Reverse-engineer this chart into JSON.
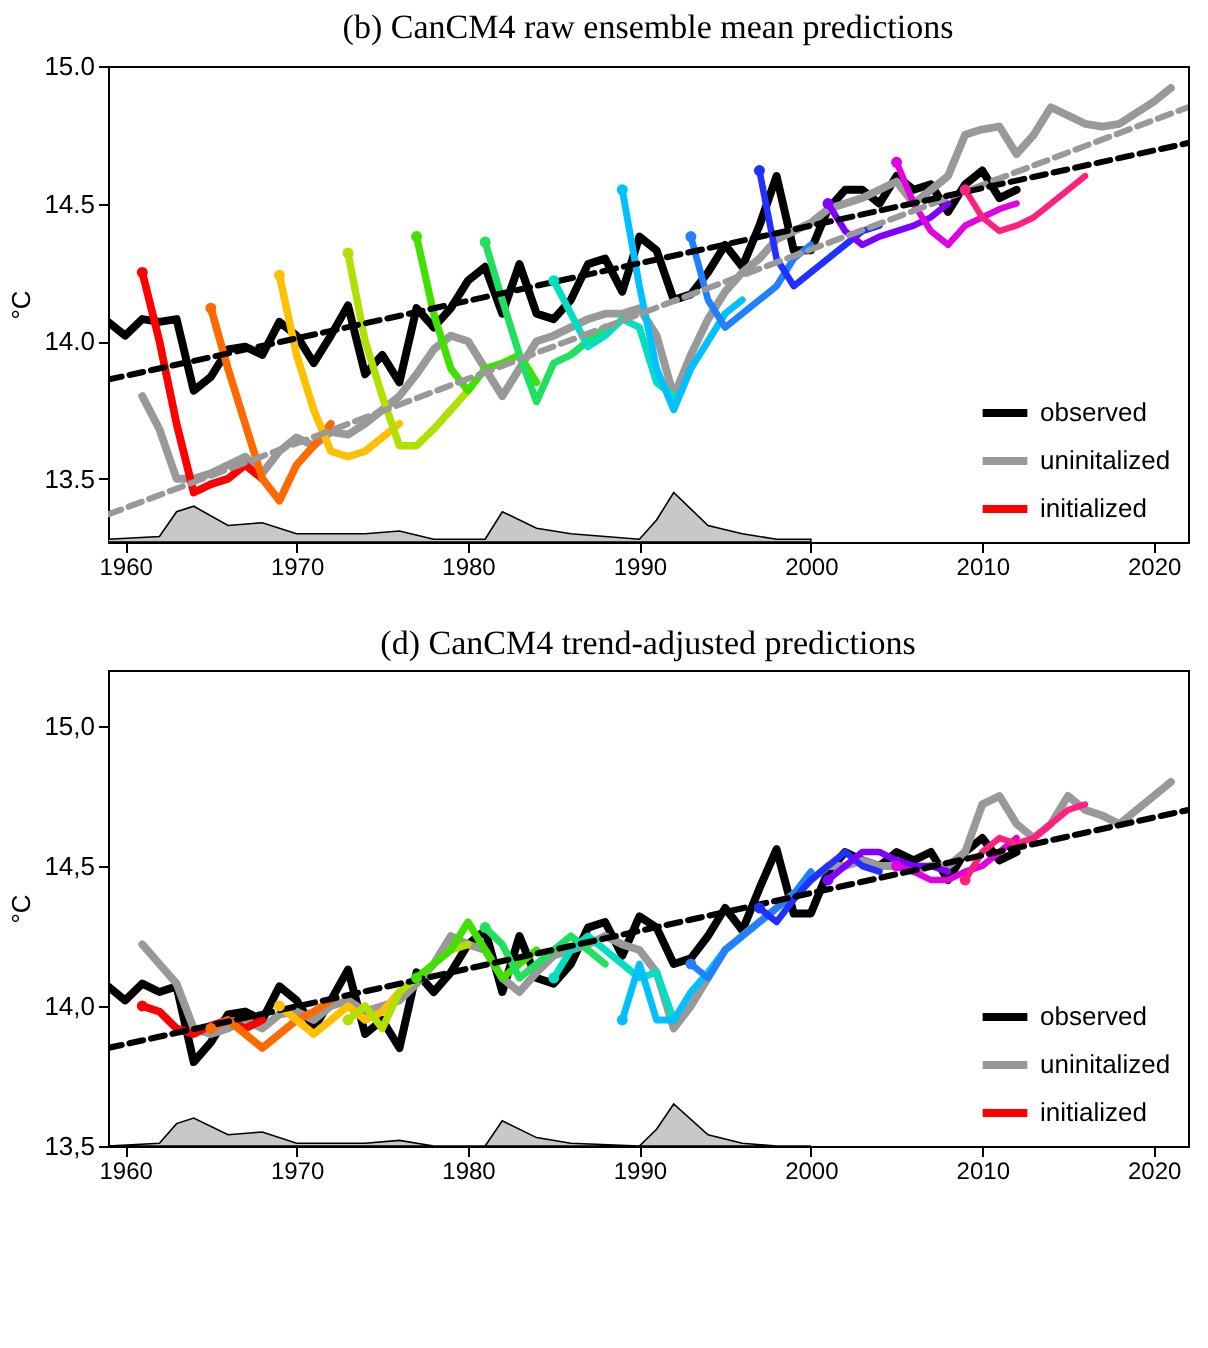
{
  "chart_data": [
    {
      "type": "line",
      "title": "(b)    CanCM4 raw ensemble mean predictions",
      "ylabel": "°C",
      "xlim": [
        1959,
        2022
      ],
      "xticks": [
        1960,
        1970,
        1980,
        1990,
        2000,
        2010,
        2020
      ],
      "ylim": [
        13.27,
        15.0
      ],
      "yticks": [
        {
          "value": 13.5,
          "label": "13.5"
        },
        {
          "value": 14,
          "label": "14.0"
        },
        {
          "value": 14.5,
          "label": "14.5"
        },
        {
          "value": 15,
          "label": "15.0"
        }
      ],
      "legend": "bottom right",
      "series": [
        {
          "type": "area",
          "color": "#c8c8c8",
          "x": [
            1959,
            1962,
            1963,
            1964,
            1966,
            1968,
            1970,
            1974,
            1976,
            1978,
            1981,
            1982,
            1984,
            1986,
            1990,
            1991,
            1992,
            1994,
            1996,
            1998,
            2000
          ],
          "values": [
            13.28,
            13.29,
            13.38,
            13.4,
            13.33,
            13.34,
            13.3,
            13.3,
            13.31,
            13.28,
            13.28,
            13.38,
            13.32,
            13.3,
            13.28,
            13.35,
            13.45,
            13.33,
            13.3,
            13.28,
            13.28
          ]
        },
        {
          "name": "observed",
          "color": "#000000",
          "x": [
            1959,
            1960,
            1961,
            1962,
            1963,
            1964,
            1965,
            1966,
            1967,
            1968,
            1969,
            1970,
            1971,
            1972,
            1973,
            1974,
            1975,
            1976,
            1977,
            1978,
            1979,
            1980,
            1981,
            1982,
            1983,
            1984,
            1985,
            1986,
            1987,
            1988,
            1989,
            1990,
            1991,
            1992,
            1993,
            1994,
            1995,
            1996,
            1997,
            1998,
            1999,
            2000,
            2001,
            2002,
            2003,
            2004,
            2005,
            2006,
            2007,
            2008,
            2009,
            2010,
            2011,
            2012
          ],
          "values": [
            14.07,
            14.02,
            14.08,
            14.07,
            14.08,
            13.82,
            13.87,
            13.97,
            13.98,
            13.95,
            14.07,
            14.02,
            13.92,
            14.02,
            14.13,
            13.88,
            13.95,
            13.85,
            14.12,
            14.05,
            14.12,
            14.22,
            14.27,
            14.1,
            14.28,
            14.1,
            14.08,
            14.15,
            14.28,
            14.3,
            14.18,
            14.38,
            14.33,
            14.15,
            14.17,
            14.25,
            14.35,
            14.27,
            14.42,
            14.6,
            14.33,
            14.33,
            14.48,
            14.55,
            14.55,
            14.5,
            14.6,
            14.55,
            14.57,
            14.47,
            14.57,
            14.62,
            14.52,
            14.55
          ]
        },
        {
          "name": "uninitalized",
          "color": "#999999",
          "x": [
            1961,
            1962,
            1963,
            1964,
            1965,
            1966,
            1967,
            1968,
            1969,
            1970,
            1971,
            1972,
            1973,
            1974,
            1975,
            1976,
            1977,
            1978,
            1979,
            1980,
            1981,
            1982,
            1983,
            1984,
            1985,
            1986,
            1987,
            1988,
            1989,
            1990,
            1991,
            1992,
            1993,
            1994,
            1995,
            1996,
            1997,
            1998,
            1999,
            2000,
            2001,
            2002,
            2003,
            2004,
            2005,
            2006,
            2007,
            2008,
            2009,
            2010,
            2011,
            2012,
            2013,
            2014,
            2015,
            2016,
            2017,
            2018,
            2019,
            2020,
            2021
          ],
          "values": [
            13.8,
            13.68,
            13.5,
            13.5,
            13.52,
            13.55,
            13.58,
            13.52,
            13.6,
            13.65,
            13.62,
            13.67,
            13.66,
            13.7,
            13.75,
            13.8,
            13.88,
            13.97,
            14.02,
            14.0,
            13.9,
            13.8,
            13.9,
            14.0,
            14.02,
            14.05,
            14.08,
            14.1,
            14.1,
            14.12,
            14.02,
            13.8,
            13.95,
            14.08,
            14.18,
            14.25,
            14.3,
            14.37,
            14.4,
            14.43,
            14.48,
            14.5,
            14.52,
            14.55,
            14.58,
            14.5,
            14.55,
            14.6,
            14.75,
            14.77,
            14.78,
            14.68,
            14.75,
            14.85,
            14.82,
            14.79,
            14.78,
            14.79,
            14.83,
            14.87,
            14.92
          ]
        },
        {
          "name": "initialized",
          "color": "#ff0000",
          "x": [
            1961,
            1962,
            1963,
            1964,
            1965,
            1966,
            1967,
            1968
          ],
          "values": [
            14.25,
            14.0,
            13.7,
            13.45,
            13.48,
            13.5,
            13.55,
            13.5
          ]
        },
        {
          "color": "#ff6a00",
          "x": [
            1965,
            1966,
            1967,
            1968,
            1969,
            1970,
            1971,
            1972
          ],
          "values": [
            14.12,
            13.9,
            13.7,
            13.5,
            13.42,
            13.55,
            13.62,
            13.7
          ]
        },
        {
          "color": "#ffc000",
          "x": [
            1969,
            1970,
            1971,
            1972,
            1973,
            1974,
            1975,
            1976
          ],
          "values": [
            14.24,
            13.95,
            13.75,
            13.6,
            13.58,
            13.6,
            13.65,
            13.7
          ]
        },
        {
          "color": "#b0e000",
          "x": [
            1973,
            1974,
            1975,
            1976,
            1977,
            1978,
            1979,
            1980
          ],
          "values": [
            14.32,
            14.0,
            13.8,
            13.62,
            13.62,
            13.68,
            13.75,
            13.82
          ]
        },
        {
          "color": "#40e000",
          "x": [
            1977,
            1978,
            1979,
            1980,
            1981,
            1982,
            1983,
            1984
          ],
          "values": [
            14.38,
            14.1,
            13.9,
            13.82,
            13.9,
            13.92,
            13.95,
            13.85
          ]
        },
        {
          "color": "#20e060",
          "x": [
            1981,
            1982,
            1983,
            1984,
            1985,
            1986,
            1987,
            1988
          ],
          "values": [
            14.36,
            14.15,
            13.95,
            13.78,
            13.92,
            13.95,
            14.0,
            14.05
          ]
        },
        {
          "color": "#00e0c0",
          "x": [
            1985,
            1986,
            1987,
            1988,
            1989,
            1990,
            1991,
            1992
          ],
          "values": [
            14.22,
            14.1,
            13.98,
            14.02,
            14.08,
            14.05,
            13.85,
            13.8
          ]
        },
        {
          "color": "#00c0ff",
          "x": [
            1989,
            1990,
            1991,
            1992,
            1993,
            1994,
            1995,
            1996
          ],
          "values": [
            14.55,
            14.2,
            13.9,
            13.75,
            13.9,
            14.0,
            14.1,
            14.15
          ]
        },
        {
          "color": "#2080ff",
          "x": [
            1993,
            1994,
            1995,
            1996,
            1997,
            1998,
            1999,
            2000
          ],
          "values": [
            14.38,
            14.15,
            14.05,
            14.1,
            14.15,
            14.2,
            14.3,
            14.35
          ]
        },
        {
          "color": "#2030ff",
          "x": [
            1997,
            1998,
            1999,
            2000,
            2001,
            2002,
            2003,
            2004
          ],
          "values": [
            14.62,
            14.3,
            14.2,
            14.25,
            14.3,
            14.35,
            14.4,
            14.42
          ]
        },
        {
          "color": "#8000ff",
          "x": [
            2001,
            2002,
            2003,
            2004,
            2005,
            2006,
            2007,
            2008
          ],
          "values": [
            14.5,
            14.4,
            14.35,
            14.38,
            14.4,
            14.42,
            14.45,
            14.5
          ]
        },
        {
          "color": "#e000e0",
          "x": [
            2005,
            2006,
            2007,
            2008,
            2009,
            2010,
            2011,
            2012
          ],
          "values": [
            14.65,
            14.5,
            14.4,
            14.35,
            14.42,
            14.45,
            14.48,
            14.5
          ]
        },
        {
          "color": "#ff2080",
          "x": [
            2009,
            2010,
            2011,
            2012,
            2013,
            2014,
            2015,
            2016
          ],
          "values": [
            14.55,
            14.45,
            14.4,
            14.42,
            14.45,
            14.5,
            14.55,
            14.6
          ]
        },
        {
          "type": "scatter",
          "colors": [
            "#ff0000",
            "#ff6a00",
            "#ffc000",
            "#b0e000",
            "#40e000",
            "#20e060",
            "#00e0c0",
            "#00c0ff",
            "#2080ff",
            "#2030ff",
            "#8000ff",
            "#e000e0",
            "#ff2080"
          ],
          "x": [
            1961,
            1965,
            1969,
            1973,
            1977,
            1981,
            1985,
            1989,
            1993,
            1997,
            2001,
            2005,
            2009
          ],
          "values": [
            14.25,
            14.12,
            14.24,
            14.32,
            14.38,
            14.36,
            14.22,
            14.55,
            14.38,
            14.62,
            14.5,
            14.65,
            14.55
          ]
        },
        {
          "color": "#999999",
          "line_style": "dashed",
          "x": [
            1959,
            2022
          ],
          "values": [
            13.37,
            14.85
          ]
        },
        {
          "color": "#000000",
          "line_style": "dashed",
          "x": [
            1959,
            2022
          ],
          "values": [
            13.86,
            14.72
          ]
        }
      ]
    },
    {
      "type": "line",
      "title": "(d)    CanCM4 trend-adjusted predictions",
      "ylabel": "°C",
      "xlim": [
        1959,
        2022
      ],
      "xticks": [
        1960,
        1970,
        1980,
        1990,
        2000,
        2010,
        2020
      ],
      "ylim": [
        13.5,
        15.2
      ],
      "yticks": [
        {
          "value": 13.5,
          "label": "13,5"
        },
        {
          "value": 14,
          "label": "14,0"
        },
        {
          "value": 14.5,
          "label": "14,5"
        },
        {
          "value": 15,
          "label": "15,0"
        }
      ],
      "legend": "bottom right",
      "series": [
        {
          "type": "area",
          "color": "#c8c8c8",
          "x": [
            1959,
            1962,
            1963,
            1964,
            1966,
            1968,
            1970,
            1974,
            1976,
            1978,
            1981,
            1982,
            1984,
            1986,
            1990,
            1991,
            1992,
            1994,
            1996,
            1998,
            2000
          ],
          "values": [
            13.5,
            13.51,
            13.58,
            13.6,
            13.54,
            13.55,
            13.51,
            13.51,
            13.52,
            13.5,
            13.5,
            13.59,
            13.53,
            13.51,
            13.5,
            13.56,
            13.65,
            13.54,
            13.51,
            13.5,
            13.5
          ]
        },
        {
          "name": "observed",
          "color": "#000000",
          "x": [
            1959,
            1960,
            1961,
            1962,
            1963,
            1964,
            1965,
            1966,
            1967,
            1968,
            1969,
            1970,
            1971,
            1972,
            1973,
            1974,
            1975,
            1976,
            1977,
            1978,
            1979,
            1980,
            1981,
            1982,
            1983,
            1984,
            1985,
            1986,
            1987,
            1988,
            1989,
            1990,
            1991,
            1992,
            1993,
            1994,
            1995,
            1996,
            1997,
            1998,
            1999,
            2000,
            2001,
            2002,
            2003,
            2004,
            2005,
            2006,
            2007,
            2008,
            2009,
            2010,
            2011,
            2012
          ],
          "values": [
            14.07,
            14.02,
            14.08,
            14.05,
            14.07,
            13.8,
            13.87,
            13.97,
            13.98,
            13.95,
            14.07,
            14.02,
            13.92,
            14.02,
            14.13,
            13.9,
            13.95,
            13.85,
            14.12,
            14.05,
            14.12,
            14.22,
            14.27,
            14.05,
            14.25,
            14.1,
            14.08,
            14.15,
            14.28,
            14.3,
            14.18,
            14.32,
            14.28,
            14.15,
            14.17,
            14.25,
            14.35,
            14.27,
            14.42,
            14.56,
            14.33,
            14.33,
            14.48,
            14.55,
            14.52,
            14.5,
            14.55,
            14.52,
            14.55,
            14.45,
            14.55,
            14.6,
            14.52,
            14.55
          ]
        },
        {
          "name": "uninitalized",
          "color": "#999999",
          "x": [
            1961,
            1962,
            1963,
            1964,
            1965,
            1966,
            1967,
            1968,
            1969,
            1970,
            1971,
            1972,
            1973,
            1974,
            1975,
            1976,
            1977,
            1978,
            1979,
            1980,
            1981,
            1982,
            1983,
            1984,
            1985,
            1986,
            1987,
            1988,
            1989,
            1990,
            1991,
            1992,
            1993,
            1994,
            1995,
            1996,
            1997,
            1998,
            1999,
            2000,
            2001,
            2002,
            2003,
            2004,
            2005,
            2006,
            2007,
            2008,
            2009,
            2010,
            2011,
            2012,
            2013,
            2014,
            2015,
            2016,
            2017,
            2018,
            2019,
            2020,
            2021
          ],
          "values": [
            14.22,
            14.15,
            14.08,
            13.92,
            13.9,
            13.92,
            13.95,
            13.92,
            13.97,
            13.98,
            13.95,
            14.0,
            14.02,
            13.98,
            14.0,
            14.02,
            14.08,
            14.15,
            14.25,
            14.22,
            14.2,
            14.1,
            14.05,
            14.12,
            14.18,
            14.2,
            14.22,
            14.25,
            14.22,
            14.2,
            14.12,
            13.92,
            14.0,
            14.1,
            14.2,
            14.25,
            14.3,
            14.35,
            14.4,
            14.45,
            14.5,
            14.5,
            14.52,
            14.5,
            14.5,
            14.48,
            14.5,
            14.5,
            14.55,
            14.72,
            14.75,
            14.65,
            14.6,
            14.65,
            14.75,
            14.7,
            14.68,
            14.65,
            14.7,
            14.75,
            14.8
          ]
        },
        {
          "name": "initialized",
          "color": "#ff0000",
          "x": [
            1961,
            1962,
            1963,
            1964,
            1965,
            1966,
            1967,
            1968
          ],
          "values": [
            14.0,
            13.98,
            13.92,
            13.9,
            13.93,
            13.95,
            13.92,
            13.95
          ]
        },
        {
          "color": "#ff6a00",
          "x": [
            1965,
            1966,
            1967,
            1968,
            1969,
            1970,
            1971,
            1972
          ],
          "values": [
            13.92,
            13.95,
            13.9,
            13.85,
            13.9,
            13.95,
            13.98,
            14.02
          ]
        },
        {
          "color": "#ffc000",
          "x": [
            1969,
            1970,
            1971,
            1972,
            1973,
            1974,
            1975,
            1976
          ],
          "values": [
            14.0,
            13.95,
            13.9,
            13.95,
            14.0,
            13.95,
            13.98,
            14.05
          ]
        },
        {
          "color": "#b0e000",
          "x": [
            1973,
            1974,
            1975,
            1976,
            1977,
            1978,
            1979,
            1980
          ],
          "values": [
            13.95,
            14.0,
            13.92,
            14.05,
            14.1,
            14.15,
            14.2,
            14.22
          ]
        },
        {
          "color": "#40e000",
          "x": [
            1977,
            1978,
            1979,
            1980,
            1981,
            1982,
            1983,
            1984
          ],
          "values": [
            14.1,
            14.15,
            14.2,
            14.3,
            14.2,
            14.1,
            14.15,
            14.2
          ]
        },
        {
          "color": "#20e060",
          "x": [
            1981,
            1982,
            1983,
            1984,
            1985,
            1986,
            1987,
            1988
          ],
          "values": [
            14.28,
            14.22,
            14.1,
            14.15,
            14.2,
            14.25,
            14.2,
            14.15
          ]
        },
        {
          "color": "#00e0c0",
          "x": [
            1985,
            1986,
            1987,
            1988,
            1989,
            1990,
            1991,
            1992
          ],
          "values": [
            14.1,
            14.2,
            14.25,
            14.2,
            14.15,
            14.1,
            14.12,
            13.95
          ]
        },
        {
          "color": "#00c0ff",
          "x": [
            1989,
            1990,
            1991,
            1992,
            1993,
            1994,
            1995,
            1996
          ],
          "values": [
            13.95,
            14.15,
            13.95,
            13.95,
            14.05,
            14.12,
            14.2,
            14.25
          ]
        },
        {
          "color": "#2080ff",
          "x": [
            1993,
            1994,
            1995,
            1996,
            1997,
            1998,
            1999,
            2000
          ],
          "values": [
            14.15,
            14.1,
            14.2,
            14.25,
            14.3,
            14.35,
            14.4,
            14.48
          ]
        },
        {
          "color": "#2030ff",
          "x": [
            1997,
            1998,
            1999,
            2000,
            2001,
            2002,
            2003,
            2004
          ],
          "values": [
            14.35,
            14.3,
            14.38,
            14.45,
            14.5,
            14.55,
            14.5,
            14.48
          ]
        },
        {
          "color": "#8000ff",
          "x": [
            2001,
            2002,
            2003,
            2004,
            2005,
            2006,
            2007,
            2008
          ],
          "values": [
            14.45,
            14.5,
            14.55,
            14.55,
            14.52,
            14.5,
            14.5,
            14.48
          ]
        },
        {
          "color": "#e000e0",
          "x": [
            2005,
            2006,
            2007,
            2008,
            2009,
            2010,
            2011,
            2012
          ],
          "values": [
            14.5,
            14.48,
            14.45,
            14.45,
            14.48,
            14.5,
            14.55,
            14.6
          ]
        },
        {
          "color": "#ff2080",
          "x": [
            2009,
            2010,
            2011,
            2012,
            2013,
            2014,
            2015,
            2016
          ],
          "values": [
            14.45,
            14.55,
            14.6,
            14.58,
            14.6,
            14.65,
            14.7,
            14.72
          ]
        },
        {
          "type": "scatter",
          "colors": [
            "#ff0000",
            "#ff6a00",
            "#ffc000",
            "#b0e000",
            "#40e000",
            "#20e060",
            "#00e0c0",
            "#00c0ff",
            "#2080ff",
            "#2030ff",
            "#8000ff",
            "#e000e0",
            "#ff2080"
          ],
          "x": [
            1961,
            1965,
            1969,
            1973,
            1977,
            1981,
            1985,
            1989,
            1993,
            1997,
            2001,
            2005,
            2009
          ],
          "values": [
            14.0,
            13.92,
            14.0,
            13.95,
            14.1,
            14.28,
            14.1,
            13.95,
            14.15,
            14.35,
            14.45,
            14.5,
            14.45
          ]
        },
        {
          "color": "#000000",
          "line_style": "dashed",
          "x": [
            1959,
            2022
          ],
          "values": [
            13.85,
            14.7
          ]
        }
      ]
    }
  ]
}
